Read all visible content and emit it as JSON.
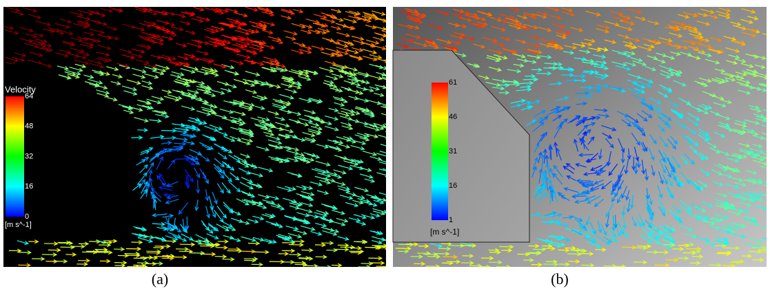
{
  "panels": [
    {
      "caption": "(a)",
      "legend": {
        "title": "Velocity",
        "ticks": [
          64,
          48,
          32,
          16,
          0
        ],
        "unit": "[m s^-1]"
      }
    },
    {
      "caption": "(b)",
      "legend": {
        "ticks": [
          61,
          46,
          31,
          16,
          1
        ],
        "unit": "[m s^-1]"
      }
    }
  ]
}
